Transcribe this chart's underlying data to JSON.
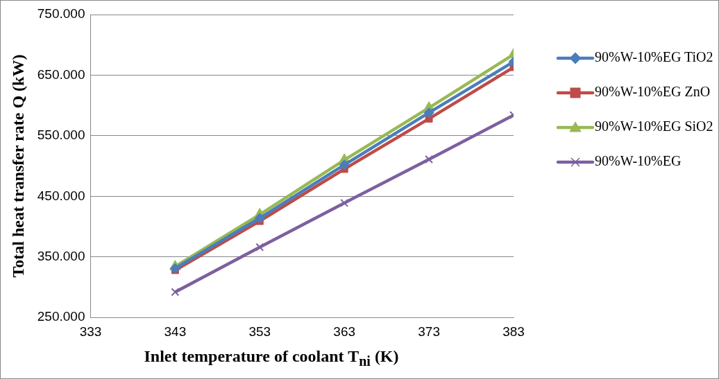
{
  "chart_data": {
    "type": "line",
    "xlabel": "Inlet temperature of coolant  T$_{ni}$ (K)",
    "ylabel": "Total heat transfer rate Q (kW)",
    "x": [
      343,
      353,
      363,
      373,
      383
    ],
    "xlim": [
      333,
      383
    ],
    "xticks": [
      333,
      343,
      353,
      363,
      373,
      383
    ],
    "ylim": [
      250,
      750
    ],
    "yticks": [
      {
        "value": 250,
        "label": "250.000"
      },
      {
        "value": 350,
        "label": "350.000"
      },
      {
        "value": 450,
        "label": "450.000"
      },
      {
        "value": 550,
        "label": "550.000"
      },
      {
        "value": 650,
        "label": "650.000"
      },
      {
        "value": 750,
        "label": "750.000"
      }
    ],
    "grid": "y",
    "legend": "right",
    "series": [
      {
        "name": "90%W-10%EG TiO2",
        "color": "#4a7ebb",
        "marker": "diamond",
        "values": [
          331,
          414,
          502,
          588,
          672
        ]
      },
      {
        "name": "90%W-10%EG ZnO",
        "color": "#be4b48",
        "marker": "square",
        "values": [
          328,
          409,
          495,
          578,
          663
        ]
      },
      {
        "name": "90%W-10%EG SiO2",
        "color": "#98b954",
        "marker": "triangle",
        "values": [
          334,
          420,
          510,
          596,
          684
        ]
      },
      {
        "name": "90%W-10%EG",
        "color": "#7d60a0",
        "marker": "cross",
        "values": [
          292,
          366,
          439,
          511,
          584
        ]
      }
    ]
  }
}
